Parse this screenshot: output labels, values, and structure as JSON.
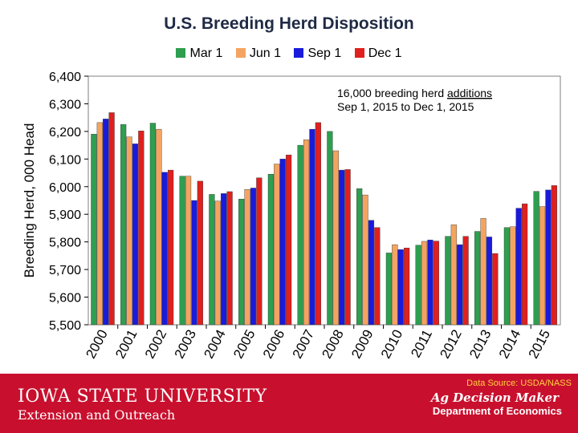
{
  "chart_data": {
    "type": "bar",
    "title": "U.S. Breeding Herd Disposition",
    "ylabel": "Breeding Herd, 000 Head",
    "xlabel": "",
    "ylim": [
      5500,
      6400
    ],
    "yticks": [
      5500,
      5600,
      5700,
      5800,
      5900,
      6000,
      6100,
      6200,
      6300,
      6400
    ],
    "ytick_labels": [
      "5,500",
      "5,600",
      "5,700",
      "5,800",
      "5,900",
      "6,000",
      "6,100",
      "6,200",
      "6,300",
      "6,400"
    ],
    "categories": [
      "2000",
      "2001",
      "2002",
      "2003",
      "2004",
      "2005",
      "2006",
      "2007",
      "2008",
      "2009",
      "2010",
      "2011",
      "2012",
      "2013",
      "2014",
      "2015"
    ],
    "series": [
      {
        "name": "Mar 1",
        "color": "#2e9e4f",
        "values": [
          6190,
          6225,
          6230,
          6038,
          5972,
          5955,
          6045,
          6150,
          6200,
          5993,
          5760,
          5788,
          5820,
          5838,
          5852,
          5983
        ]
      },
      {
        "name": "Jun 1",
        "color": "#f4a460",
        "values": [
          6232,
          6180,
          6208,
          6038,
          5948,
          5990,
          6082,
          6170,
          6130,
          5970,
          5790,
          5802,
          5862,
          5885,
          5855,
          5928
        ]
      },
      {
        "name": "Sep 1",
        "color": "#1a1adb",
        "values": [
          6245,
          6155,
          6052,
          5950,
          5975,
          5995,
          6100,
          6208,
          6060,
          5878,
          5772,
          5807,
          5790,
          5818,
          5922,
          5988
        ]
      },
      {
        "name": "Dec 1",
        "color": "#e0201e",
        "values": [
          6268,
          6202,
          6060,
          6020,
          5982,
          6032,
          6115,
          6232,
          6062,
          5852,
          5778,
          5803,
          5820,
          5758,
          5938,
          6004
        ]
      }
    ],
    "annotation": {
      "text": "16,000 breeding herd additions",
      "subtext": "Sep 1, 2015 to Dec 1, 2015"
    },
    "grid": false,
    "legend": "top-center"
  },
  "footer": {
    "data_source": "Data Source: USDA/NASS",
    "university": "IOWA STATE UNIVERSITY",
    "unit": "Extension and Outreach",
    "program": "Ag Decision Maker",
    "department": "Department of Economics"
  }
}
